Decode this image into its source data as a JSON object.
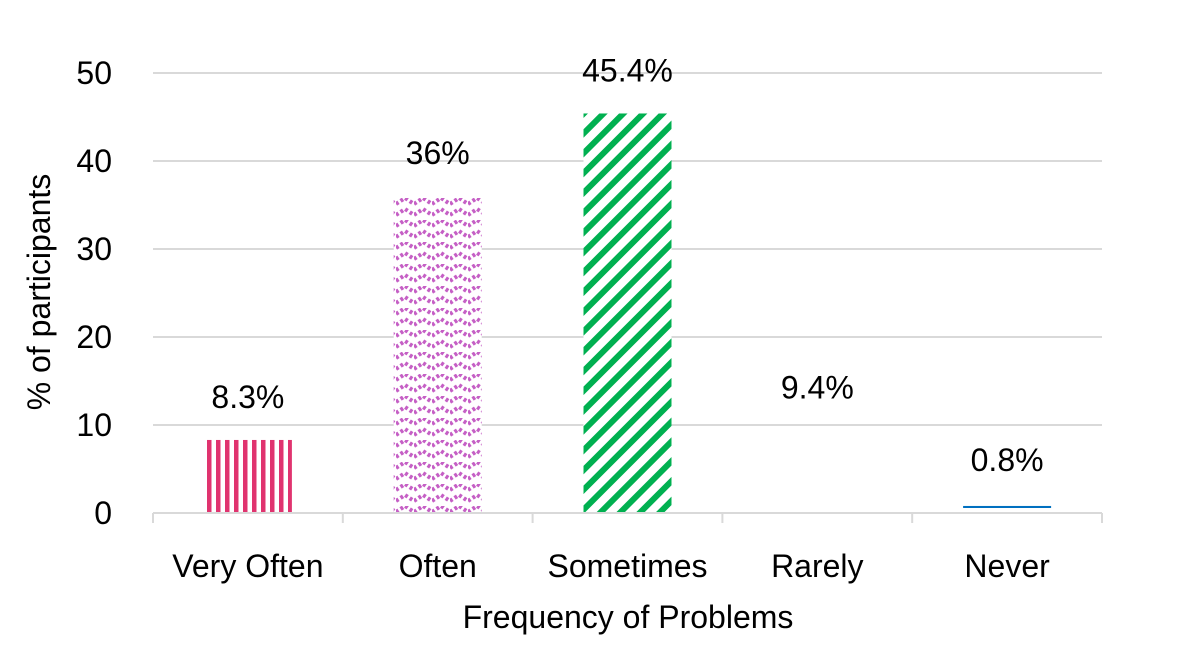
{
  "chart_data": {
    "type": "bar",
    "title": "",
    "xlabel": "Frequency of Problems",
    "ylabel": "% of participants",
    "categories": [
      "Very Often",
      "Often",
      "Sometimes",
      "Rarely",
      "Never"
    ],
    "values": [
      8.3,
      36,
      45.4,
      9.4,
      0.8
    ],
    "data_labels": [
      "8.3%",
      "36%",
      "45.4%",
      "9.4%",
      "0.8%"
    ],
    "ylim": [
      0,
      50
    ],
    "yticks": [
      0,
      10,
      20,
      30,
      40,
      50
    ],
    "ytick_labels": [
      "0",
      "10",
      "20",
      "30",
      "40",
      "50"
    ],
    "grid": true,
    "legend": "none",
    "colors": [
      "#e0336f",
      "#c55fc5",
      "#00b050",
      "#ffffff",
      "#0070c0"
    ],
    "patterns": [
      "vertical-stripes",
      "zigzag",
      "diagonal-stripes",
      "none",
      "horizontal-stripes"
    ]
  }
}
